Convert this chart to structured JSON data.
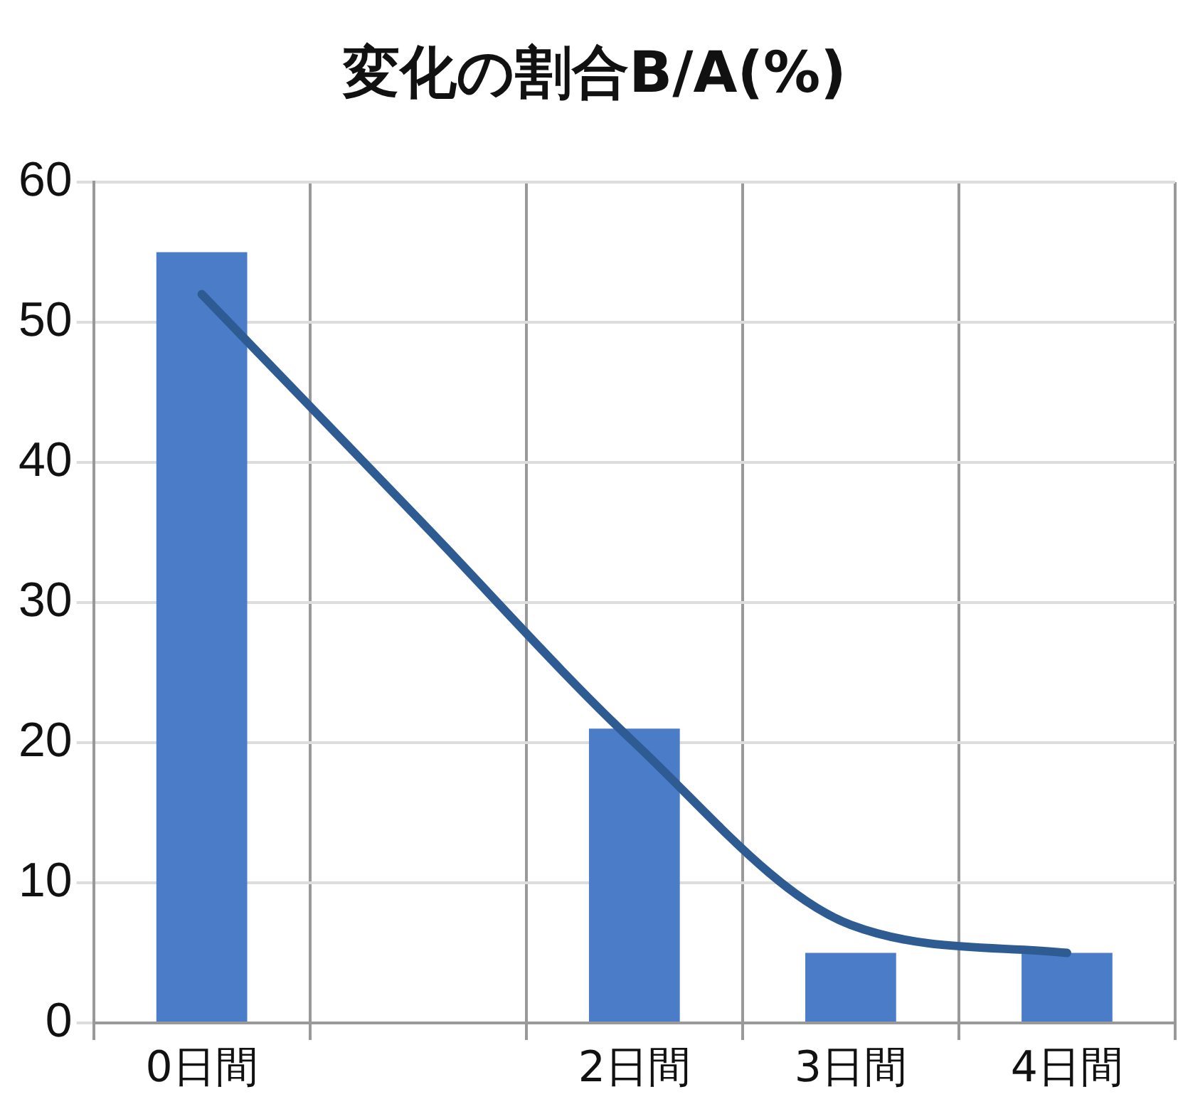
{
  "chart_data": {
    "type": "bar",
    "title": "変化の割合B/A(%)",
    "categories": [
      "0日間",
      null,
      "2日間",
      "3日間",
      "4日間"
    ],
    "series": [
      {
        "color": "#4a7cc8",
        "values": [
          55,
          null,
          21,
          5,
          5
        ]
      },
      {
        "type": "line",
        "color": "#2f5b93",
        "values": [
          52,
          36,
          20,
          7,
          5
        ]
      }
    ],
    "ylim": [
      0,
      60
    ],
    "yticks": [
      0,
      10,
      20,
      30,
      40,
      50,
      60
    ],
    "grid": true,
    "legend": false,
    "marker": "none"
  }
}
